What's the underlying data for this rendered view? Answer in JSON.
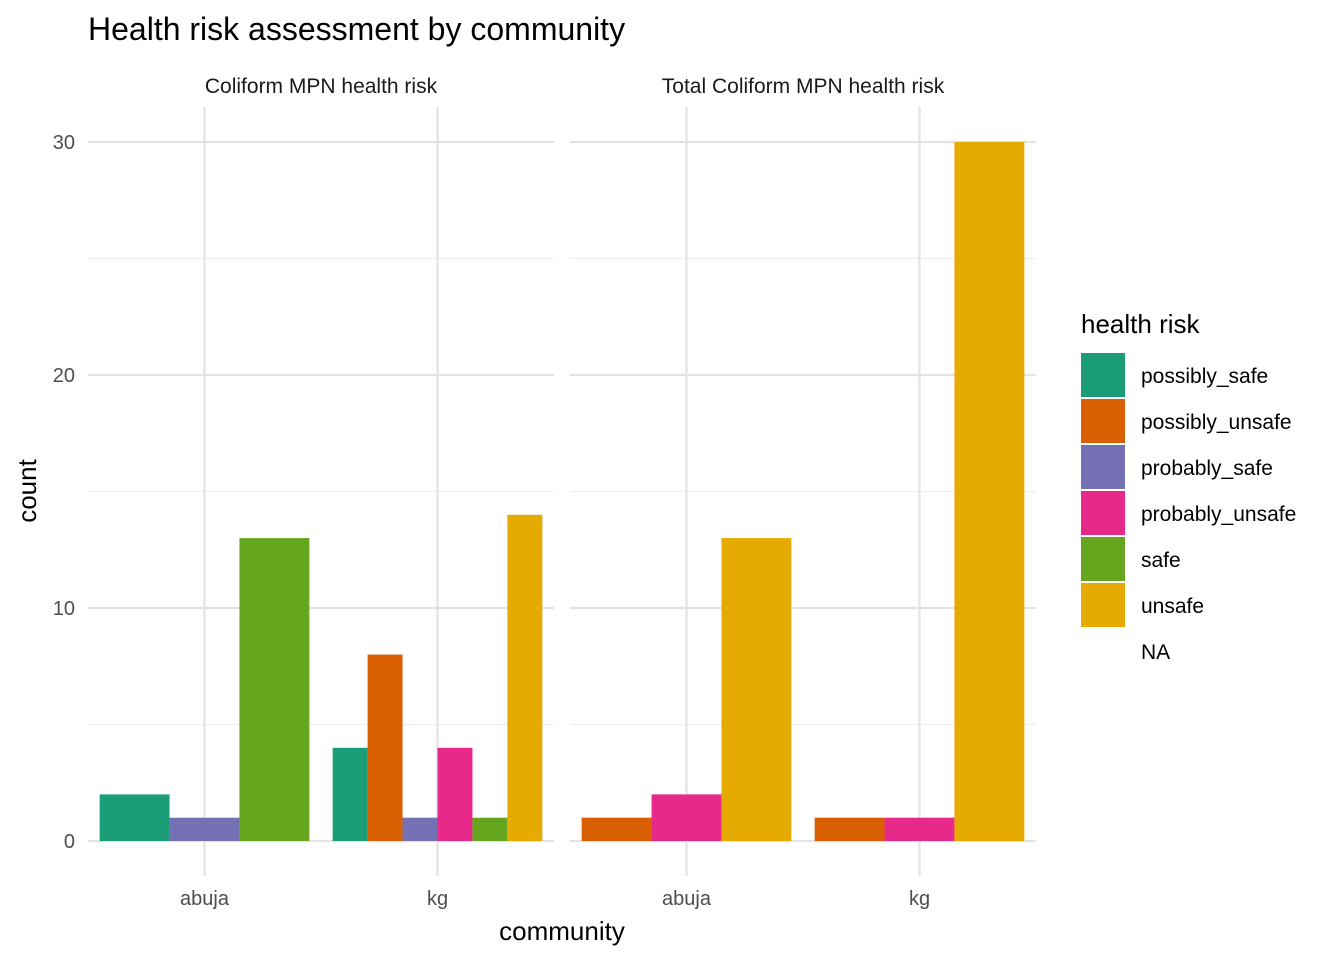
{
  "chart_data": {
    "type": "bar",
    "title": "Health risk assessment by community",
    "xlabel": "community",
    "ylabel": "count",
    "ylim": [
      0,
      30
    ],
    "yticks": [
      0,
      10,
      20,
      30
    ],
    "categories": [
      "abuja",
      "kg"
    ],
    "grid": true,
    "legend": {
      "title": "health risk",
      "placement": "right",
      "entries": [
        {
          "name": "possibly_safe",
          "color": "#1B9E77"
        },
        {
          "name": "possibly_unsafe",
          "color": "#D95F02"
        },
        {
          "name": "probably_safe",
          "color": "#7570B3"
        },
        {
          "name": "probably_unsafe",
          "color": "#E7298A"
        },
        {
          "name": "safe",
          "color": "#66A61E"
        },
        {
          "name": "unsafe",
          "color": "#E6AB02"
        },
        {
          "name": "NA",
          "color": ""
        }
      ]
    },
    "panels": [
      {
        "title": "Coliform MPN health risk",
        "groups": [
          {
            "category": "abuja",
            "bars": [
              {
                "level": "possibly_safe",
                "value": 2
              },
              {
                "level": "probably_safe",
                "value": 1
              },
              {
                "level": "safe",
                "value": 13
              }
            ]
          },
          {
            "category": "kg",
            "bars": [
              {
                "level": "possibly_safe",
                "value": 4
              },
              {
                "level": "possibly_unsafe",
                "value": 8
              },
              {
                "level": "probably_safe",
                "value": 1
              },
              {
                "level": "probably_unsafe",
                "value": 4
              },
              {
                "level": "safe",
                "value": 1
              },
              {
                "level": "unsafe",
                "value": 14
              }
            ]
          }
        ]
      },
      {
        "title": "Total Coliform MPN health risk",
        "groups": [
          {
            "category": "abuja",
            "bars": [
              {
                "level": "possibly_unsafe",
                "value": 1
              },
              {
                "level": "probably_unsafe",
                "value": 2
              },
              {
                "level": "unsafe",
                "value": 13
              }
            ]
          },
          {
            "category": "kg",
            "bars": [
              {
                "level": "possibly_unsafe",
                "value": 1
              },
              {
                "level": "probably_unsafe",
                "value": 1
              },
              {
                "level": "unsafe",
                "value": 30
              }
            ]
          }
        ]
      }
    ]
  }
}
